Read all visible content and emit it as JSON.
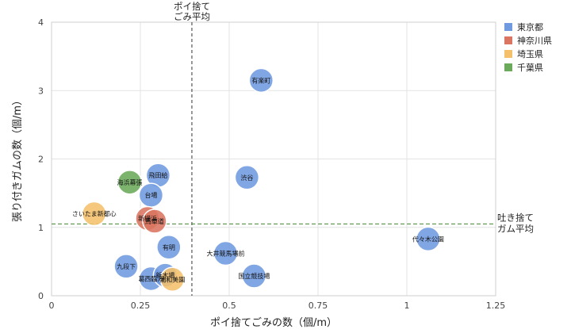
{
  "chart_data": {
    "type": "scatter",
    "xlabel": "ポイ捨てごみの数（個/m）",
    "ylabel": "張り付きガムの数（個/m）",
    "xlim": [
      0,
      1.25
    ],
    "ylim": [
      0,
      4
    ],
    "xticks": [
      {
        "value": 0,
        "label": "0"
      },
      {
        "value": 0.25,
        "label": "0.25"
      },
      {
        "value": 0.5,
        "label": "0.5"
      },
      {
        "value": 0.75,
        "label": "0.75"
      },
      {
        "value": 1,
        "label": "1"
      },
      {
        "value": 1.25,
        "label": "1.25"
      }
    ],
    "yticks": [
      {
        "value": 0,
        "label": "0"
      },
      {
        "value": 1,
        "label": "1"
      },
      {
        "value": 2,
        "label": "2"
      },
      {
        "value": 3,
        "label": "3"
      },
      {
        "value": 4,
        "label": "4"
      }
    ],
    "grid": true,
    "legend": [
      {
        "name": "東京都",
        "color": "#6f9ae0"
      },
      {
        "name": "神奈川県",
        "color": "#d97560"
      },
      {
        "name": "埼玉県",
        "color": "#f5c06b"
      },
      {
        "name": "千葉県",
        "color": "#6aaa5a"
      }
    ],
    "reference_lines": {
      "x_mean": {
        "value": 0.395,
        "label_lines": [
          "ポイ捨て",
          "ごみ平均"
        ]
      },
      "y_mean": {
        "value": 1.05,
        "label_lines": [
          "吐き捨て",
          "ガム平均"
        ]
      }
    },
    "points": [
      {
        "label": "有楽町",
        "pref": "東京都",
        "x": 0.59,
        "y": 3.15
      },
      {
        "label": "渋谷",
        "pref": "東京都",
        "x": 0.55,
        "y": 1.73
      },
      {
        "label": "飛田給",
        "pref": "東京都",
        "x": 0.3,
        "y": 1.76
      },
      {
        "label": "台場",
        "pref": "東京都",
        "x": 0.28,
        "y": 1.47
      },
      {
        "label": "有明",
        "pref": "東京都",
        "x": 0.33,
        "y": 0.71
      },
      {
        "label": "九段下",
        "pref": "東京都",
        "x": 0.21,
        "y": 0.43
      },
      {
        "label": "葛西臨海",
        "pref": "東京都",
        "x": 0.28,
        "y": 0.25
      },
      {
        "label": "新木場",
        "pref": "東京都",
        "x": 0.32,
        "y": 0.3
      },
      {
        "label": "大井競馬場前",
        "pref": "東京都",
        "x": 0.49,
        "y": 0.62
      },
      {
        "label": "国立競技場",
        "pref": "東京都",
        "x": 0.57,
        "y": 0.29
      },
      {
        "label": "代々木公園",
        "pref": "東京都",
        "x": 1.06,
        "y": 0.83
      },
      {
        "label": "新横浜",
        "pref": "神奈川県",
        "x": 0.27,
        "y": 1.13
      },
      {
        "label": "馬車道",
        "pref": "神奈川県",
        "x": 0.29,
        "y": 1.09
      },
      {
        "label": "さいたま新都心",
        "pref": "埼玉県",
        "x": 0.12,
        "y": 1.2
      },
      {
        "label": "浦和美園",
        "pref": "埼玉県",
        "x": 0.34,
        "y": 0.24
      },
      {
        "label": "海浜幕張",
        "pref": "千葉県",
        "x": 0.22,
        "y": 1.66
      }
    ]
  }
}
